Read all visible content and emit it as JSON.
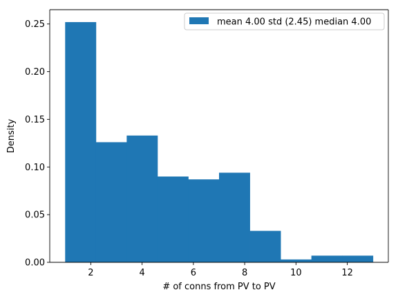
{
  "chart_data": {
    "type": "bar",
    "title": "",
    "xlabel": "# of conns from PV to PV",
    "ylabel": "Density",
    "xlim": [
      0.4,
      13.6
    ],
    "ylim": [
      0,
      0.265
    ],
    "xticks": [
      2,
      4,
      6,
      8,
      10,
      12
    ],
    "yticks": [
      0.0,
      0.05,
      0.1,
      0.15,
      0.2,
      0.25
    ],
    "ytick_labels": [
      "0.00",
      "0.05",
      "0.10",
      "0.15",
      "0.20",
      "0.25"
    ],
    "xtick_labels": [
      "2",
      "4",
      "6",
      "8",
      "10",
      "12"
    ],
    "bin_edges": [
      1.0,
      2.2,
      3.4,
      4.6,
      5.8,
      7.0,
      8.2,
      9.4,
      10.6,
      11.8,
      13.0
    ],
    "values": [
      0.252,
      0.126,
      0.133,
      0.09,
      0.087,
      0.094,
      0.033,
      0.003,
      0.007,
      0.007
    ],
    "color": "#1f77b4",
    "grid": false,
    "legend_position": "top-right",
    "series": [
      {
        "name": "mean 4.00 std (2.45) median 4.00"
      }
    ]
  }
}
